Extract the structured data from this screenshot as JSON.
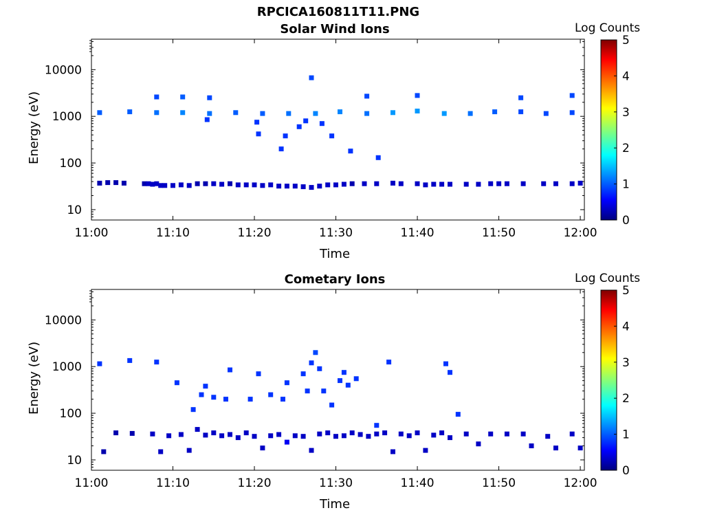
{
  "figure": {
    "title": "RPCICA160811T11.PNG",
    "colors": {
      "axis": "#000000",
      "colormap_stops": [
        "#00007f",
        "#0000ff",
        "#00ffff",
        "#ffff00",
        "#ff0000",
        "#7f0000"
      ]
    }
  },
  "chart_data": [
    {
      "type": "heatmap",
      "title": "Solar Wind Ions",
      "xlabel": "Time",
      "ylabel": "Energy (eV)",
      "x_ticks": [
        "11:00",
        "11:10",
        "11:20",
        "11:30",
        "11:40",
        "11:50",
        "12:00"
      ],
      "x_range_minutes": [
        0,
        60.5
      ],
      "y_scale": "log",
      "y_ticks": [
        "10",
        "100",
        "1000",
        "10000"
      ],
      "y_range": [
        6,
        45000
      ],
      "colorbar": {
        "label": "Log Counts",
        "min": 0,
        "max": 5,
        "ticks": [
          "0",
          "1",
          "2",
          "3",
          "4",
          "5"
        ]
      },
      "cells": [
        {
          "t": 1.0,
          "e": 37,
          "v": 0.2
        },
        {
          "t": 2.0,
          "e": 38,
          "v": 0.2
        },
        {
          "t": 3.0,
          "e": 38,
          "v": 0.2
        },
        {
          "t": 4.0,
          "e": 37,
          "v": 0.2
        },
        {
          "t": 6.5,
          "e": 36,
          "v": 0.2
        },
        {
          "t": 7.0,
          "e": 36,
          "v": 0.3
        },
        {
          "t": 7.5,
          "e": 35,
          "v": 0.3
        },
        {
          "t": 8.0,
          "e": 36,
          "v": 0.3
        },
        {
          "t": 8.5,
          "e": 33,
          "v": 0.3
        },
        {
          "t": 9.0,
          "e": 33,
          "v": 0.3
        },
        {
          "t": 10.0,
          "e": 33,
          "v": 0.3
        },
        {
          "t": 11.0,
          "e": 34,
          "v": 0.3
        },
        {
          "t": 12.0,
          "e": 33,
          "v": 0.3
        },
        {
          "t": 13.0,
          "e": 36,
          "v": 0.2
        },
        {
          "t": 14.0,
          "e": 36,
          "v": 0.2
        },
        {
          "t": 15.0,
          "e": 36,
          "v": 0.3
        },
        {
          "t": 16.0,
          "e": 35,
          "v": 0.3
        },
        {
          "t": 17.0,
          "e": 36,
          "v": 0.2
        },
        {
          "t": 18.0,
          "e": 34,
          "v": 0.3
        },
        {
          "t": 19.0,
          "e": 34,
          "v": 0.3
        },
        {
          "t": 20.0,
          "e": 34,
          "v": 0.3
        },
        {
          "t": 21.0,
          "e": 33,
          "v": 0.3
        },
        {
          "t": 22.0,
          "e": 34,
          "v": 0.3
        },
        {
          "t": 23.0,
          "e": 32,
          "v": 0.3
        },
        {
          "t": 24.0,
          "e": 32,
          "v": 0.3
        },
        {
          "t": 25.0,
          "e": 32,
          "v": 0.3
        },
        {
          "t": 26.0,
          "e": 31,
          "v": 0.3
        },
        {
          "t": 27.0,
          "e": 30,
          "v": 0.3
        },
        {
          "t": 28.0,
          "e": 32,
          "v": 0.3
        },
        {
          "t": 29.0,
          "e": 34,
          "v": 0.3
        },
        {
          "t": 30.0,
          "e": 34,
          "v": 0.3
        },
        {
          "t": 31.0,
          "e": 35,
          "v": 0.3
        },
        {
          "t": 32.0,
          "e": 36,
          "v": 0.2
        },
        {
          "t": 33.5,
          "e": 36,
          "v": 0.3
        },
        {
          "t": 35.0,
          "e": 36,
          "v": 0.3
        },
        {
          "t": 37.0,
          "e": 37,
          "v": 0.3
        },
        {
          "t": 38.0,
          "e": 36,
          "v": 0.3
        },
        {
          "t": 40.0,
          "e": 36,
          "v": 0.3
        },
        {
          "t": 41.0,
          "e": 34,
          "v": 0.3
        },
        {
          "t": 42.0,
          "e": 35,
          "v": 0.3
        },
        {
          "t": 43.0,
          "e": 35,
          "v": 0.3
        },
        {
          "t": 44.0,
          "e": 35,
          "v": 0.3
        },
        {
          "t": 46.0,
          "e": 35,
          "v": 0.3
        },
        {
          "t": 47.5,
          "e": 35,
          "v": 0.3
        },
        {
          "t": 49.0,
          "e": 36,
          "v": 0.3
        },
        {
          "t": 50.0,
          "e": 36,
          "v": 0.3
        },
        {
          "t": 51.0,
          "e": 36,
          "v": 0.3
        },
        {
          "t": 53.0,
          "e": 36,
          "v": 0.3
        },
        {
          "t": 55.5,
          "e": 36,
          "v": 0.3
        },
        {
          "t": 57.0,
          "e": 36,
          "v": 0.3
        },
        {
          "t": 59.0,
          "e": 36,
          "v": 0.3
        },
        {
          "t": 60.0,
          "e": 37,
          "v": 0.3
        },
        {
          "t": 1.0,
          "e": 1200,
          "v": 1.0
        },
        {
          "t": 4.7,
          "e": 1250,
          "v": 1.0
        },
        {
          "t": 8.0,
          "e": 1200,
          "v": 1.1
        },
        {
          "t": 11.2,
          "e": 1200,
          "v": 1.2
        },
        {
          "t": 14.5,
          "e": 1150,
          "v": 1.1
        },
        {
          "t": 17.7,
          "e": 1200,
          "v": 1.0
        },
        {
          "t": 21.0,
          "e": 1150,
          "v": 1.0
        },
        {
          "t": 24.2,
          "e": 1150,
          "v": 1.1
        },
        {
          "t": 27.5,
          "e": 1150,
          "v": 1.2
        },
        {
          "t": 30.5,
          "e": 1250,
          "v": 1.2
        },
        {
          "t": 33.8,
          "e": 1150,
          "v": 1.1
        },
        {
          "t": 37.0,
          "e": 1200,
          "v": 1.3
        },
        {
          "t": 40.0,
          "e": 1300,
          "v": 1.3
        },
        {
          "t": 43.3,
          "e": 1150,
          "v": 1.3
        },
        {
          "t": 46.5,
          "e": 1150,
          "v": 1.1
        },
        {
          "t": 49.5,
          "e": 1250,
          "v": 1.0
        },
        {
          "t": 52.7,
          "e": 1250,
          "v": 0.9
        },
        {
          "t": 55.8,
          "e": 1150,
          "v": 0.9
        },
        {
          "t": 59.0,
          "e": 1200,
          "v": 0.9
        },
        {
          "t": 8.0,
          "e": 2600,
          "v": 0.9
        },
        {
          "t": 11.2,
          "e": 2600,
          "v": 1.0
        },
        {
          "t": 14.5,
          "e": 2500,
          "v": 0.9
        },
        {
          "t": 27.0,
          "e": 6700,
          "v": 0.9
        },
        {
          "t": 33.8,
          "e": 2700,
          "v": 0.9
        },
        {
          "t": 40.0,
          "e": 2800,
          "v": 0.9
        },
        {
          "t": 52.7,
          "e": 2500,
          "v": 0.9
        },
        {
          "t": 59.0,
          "e": 2800,
          "v": 0.9
        },
        {
          "t": 20.5,
          "e": 420,
          "v": 0.8
        },
        {
          "t": 23.3,
          "e": 200,
          "v": 0.8
        },
        {
          "t": 23.8,
          "e": 380,
          "v": 0.8
        },
        {
          "t": 25.5,
          "e": 600,
          "v": 0.8
        },
        {
          "t": 26.3,
          "e": 800,
          "v": 0.8
        },
        {
          "t": 28.3,
          "e": 700,
          "v": 0.8
        },
        {
          "t": 29.5,
          "e": 380,
          "v": 0.8
        },
        {
          "t": 31.8,
          "e": 180,
          "v": 0.8
        },
        {
          "t": 35.2,
          "e": 130,
          "v": 0.8
        },
        {
          "t": 14.2,
          "e": 850,
          "v": 0.8
        },
        {
          "t": 20.3,
          "e": 750,
          "v": 0.8
        }
      ]
    },
    {
      "type": "heatmap",
      "title": "Cometary Ions",
      "xlabel": "Time",
      "ylabel": "Energy (eV)",
      "x_ticks": [
        "11:00",
        "11:10",
        "11:20",
        "11:30",
        "11:40",
        "11:50",
        "12:00"
      ],
      "x_range_minutes": [
        0,
        60.5
      ],
      "y_scale": "log",
      "y_ticks": [
        "10",
        "100",
        "1000",
        "10000"
      ],
      "y_range": [
        6,
        45000
      ],
      "colorbar": {
        "label": "Log Counts",
        "min": 0,
        "max": 5,
        "ticks": [
          "0",
          "1",
          "2",
          "3",
          "4",
          "5"
        ]
      },
      "cells": [
        {
          "t": 1.5,
          "e": 15,
          "v": 0.2
        },
        {
          "t": 3.0,
          "e": 38,
          "v": 0.2
        },
        {
          "t": 5.0,
          "e": 37,
          "v": 0.2
        },
        {
          "t": 7.5,
          "e": 36,
          "v": 0.3
        },
        {
          "t": 8.5,
          "e": 15,
          "v": 0.3
        },
        {
          "t": 9.5,
          "e": 33,
          "v": 0.3
        },
        {
          "t": 11.0,
          "e": 35,
          "v": 0.3
        },
        {
          "t": 12.0,
          "e": 16,
          "v": 0.3
        },
        {
          "t": 13.0,
          "e": 45,
          "v": 0.3
        },
        {
          "t": 14.0,
          "e": 34,
          "v": 0.3
        },
        {
          "t": 15.0,
          "e": 38,
          "v": 0.3
        },
        {
          "t": 16.0,
          "e": 33,
          "v": 0.3
        },
        {
          "t": 17.0,
          "e": 35,
          "v": 0.3
        },
        {
          "t": 18.0,
          "e": 30,
          "v": 0.3
        },
        {
          "t": 19.0,
          "e": 38,
          "v": 0.3
        },
        {
          "t": 20.0,
          "e": 32,
          "v": 0.3
        },
        {
          "t": 21.0,
          "e": 18,
          "v": 0.3
        },
        {
          "t": 22.0,
          "e": 33,
          "v": 0.3
        },
        {
          "t": 23.0,
          "e": 35,
          "v": 0.3
        },
        {
          "t": 24.0,
          "e": 24,
          "v": 0.5
        },
        {
          "t": 25.0,
          "e": 33,
          "v": 0.3
        },
        {
          "t": 26.0,
          "e": 32,
          "v": 0.3
        },
        {
          "t": 27.0,
          "e": 16,
          "v": 0.3
        },
        {
          "t": 28.0,
          "e": 36,
          "v": 0.3
        },
        {
          "t": 29.0,
          "e": 38,
          "v": 0.3
        },
        {
          "t": 30.0,
          "e": 32,
          "v": 0.3
        },
        {
          "t": 31.0,
          "e": 33,
          "v": 0.3
        },
        {
          "t": 32.0,
          "e": 38,
          "v": 0.3
        },
        {
          "t": 33.0,
          "e": 35,
          "v": 0.3
        },
        {
          "t": 34.0,
          "e": 32,
          "v": 0.3
        },
        {
          "t": 35.0,
          "e": 36,
          "v": 0.3
        },
        {
          "t": 36.0,
          "e": 38,
          "v": 0.3
        },
        {
          "t": 37.0,
          "e": 15,
          "v": 0.3
        },
        {
          "t": 38.0,
          "e": 36,
          "v": 0.3
        },
        {
          "t": 39.0,
          "e": 33,
          "v": 0.3
        },
        {
          "t": 40.0,
          "e": 38,
          "v": 0.3
        },
        {
          "t": 41.0,
          "e": 16,
          "v": 0.3
        },
        {
          "t": 42.0,
          "e": 34,
          "v": 0.3
        },
        {
          "t": 43.0,
          "e": 38,
          "v": 0.3
        },
        {
          "t": 44.0,
          "e": 30,
          "v": 0.3
        },
        {
          "t": 46.0,
          "e": 36,
          "v": 0.3
        },
        {
          "t": 47.5,
          "e": 22,
          "v": 0.3
        },
        {
          "t": 49.0,
          "e": 36,
          "v": 0.3
        },
        {
          "t": 51.0,
          "e": 36,
          "v": 0.3
        },
        {
          "t": 53.0,
          "e": 36,
          "v": 0.3
        },
        {
          "t": 54.0,
          "e": 20,
          "v": 0.3
        },
        {
          "t": 56.0,
          "e": 32,
          "v": 0.3
        },
        {
          "t": 57.0,
          "e": 18,
          "v": 0.3
        },
        {
          "t": 59.0,
          "e": 36,
          "v": 0.3
        },
        {
          "t": 60.0,
          "e": 18,
          "v": 0.3
        },
        {
          "t": 1.0,
          "e": 1150,
          "v": 0.8
        },
        {
          "t": 4.7,
          "e": 1350,
          "v": 0.8
        },
        {
          "t": 8.0,
          "e": 1250,
          "v": 0.8
        },
        {
          "t": 10.5,
          "e": 450,
          "v": 0.8
        },
        {
          "t": 12.5,
          "e": 120,
          "v": 0.8
        },
        {
          "t": 13.5,
          "e": 250,
          "v": 0.8
        },
        {
          "t": 14.0,
          "e": 380,
          "v": 0.8
        },
        {
          "t": 15.0,
          "e": 220,
          "v": 0.8
        },
        {
          "t": 17.0,
          "e": 850,
          "v": 0.8
        },
        {
          "t": 16.5,
          "e": 200,
          "v": 0.8
        },
        {
          "t": 19.5,
          "e": 200,
          "v": 0.8
        },
        {
          "t": 20.5,
          "e": 700,
          "v": 0.8
        },
        {
          "t": 22.0,
          "e": 250,
          "v": 0.8
        },
        {
          "t": 23.5,
          "e": 200,
          "v": 0.8
        },
        {
          "t": 24.0,
          "e": 450,
          "v": 0.8
        },
        {
          "t": 26.0,
          "e": 700,
          "v": 0.8
        },
        {
          "t": 26.5,
          "e": 300,
          "v": 0.8
        },
        {
          "t": 27.5,
          "e": 2000,
          "v": 0.9
        },
        {
          "t": 27.0,
          "e": 1200,
          "v": 0.8
        },
        {
          "t": 28.0,
          "e": 900,
          "v": 0.8
        },
        {
          "t": 28.5,
          "e": 300,
          "v": 0.8
        },
        {
          "t": 29.5,
          "e": 150,
          "v": 0.8
        },
        {
          "t": 30.5,
          "e": 500,
          "v": 0.8
        },
        {
          "t": 31.0,
          "e": 750,
          "v": 0.8
        },
        {
          "t": 31.5,
          "e": 400,
          "v": 0.8
        },
        {
          "t": 32.5,
          "e": 550,
          "v": 0.8
        },
        {
          "t": 36.5,
          "e": 1250,
          "v": 0.8
        },
        {
          "t": 43.5,
          "e": 1150,
          "v": 0.8
        },
        {
          "t": 44.0,
          "e": 750,
          "v": 0.8
        },
        {
          "t": 45.0,
          "e": 95,
          "v": 0.8
        },
        {
          "t": 35.0,
          "e": 55,
          "v": 0.8
        }
      ]
    }
  ]
}
